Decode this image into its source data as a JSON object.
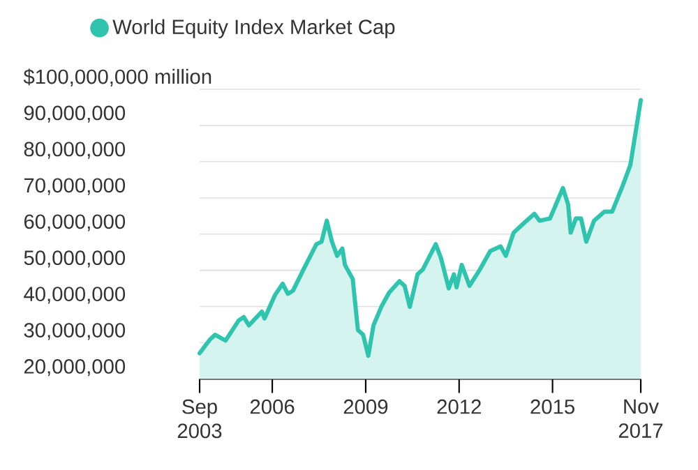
{
  "chart_data": {
    "type": "area",
    "series": [
      {
        "name": "World Equity Index Market Cap",
        "color": "#2ec4ae",
        "x": [
          "2003-09",
          "2004-01",
          "2004-03",
          "2004-07",
          "2004-12",
          "2005-02",
          "2005-04",
          "2005-09",
          "2005-10",
          "2006-02",
          "2006-05",
          "2006-07",
          "2006-09",
          "2007-01",
          "2007-06",
          "2007-08",
          "2007-10",
          "2007-12",
          "2008-02",
          "2008-04",
          "2008-05",
          "2008-08",
          "2008-10",
          "2008-12",
          "2009-02",
          "2009-04",
          "2009-07",
          "2009-10",
          "2010-02",
          "2010-04",
          "2010-06",
          "2010-09",
          "2010-11",
          "2011-04",
          "2011-06",
          "2011-09",
          "2011-11",
          "2011-12",
          "2012-02",
          "2012-05",
          "2012-09",
          "2013-01",
          "2013-05",
          "2013-07",
          "2013-10",
          "2014-01",
          "2014-06",
          "2014-08",
          "2014-12",
          "2015-05",
          "2015-07",
          "2015-08",
          "2015-10",
          "2015-12",
          "2016-02",
          "2016-05",
          "2016-09",
          "2016-12",
          "2017-04",
          "2017-07",
          "2017-11"
        ],
        "values": [
          27100000,
          30900000,
          32200000,
          30600000,
          36100000,
          37100000,
          34800000,
          38600000,
          36700000,
          43100000,
          46300000,
          43500000,
          44400000,
          50200000,
          57200000,
          57900000,
          63700000,
          57900000,
          54000000,
          56000000,
          51500000,
          47600000,
          33500000,
          32200000,
          26400000,
          34800000,
          39900000,
          43800000,
          47000000,
          45700000,
          39900000,
          48900000,
          50200000,
          57200000,
          53400000,
          45000000,
          48900000,
          45300000,
          51500000,
          45700000,
          50200000,
          55300000,
          56600000,
          54000000,
          60400000,
          62400000,
          65600000,
          63700000,
          64300000,
          72700000,
          68200000,
          60400000,
          64300000,
          64300000,
          57900000,
          63700000,
          66200000,
          66200000,
          73300000,
          79100000,
          97000000
        ]
      }
    ],
    "xlim": [
      "2003-09",
      "2017-11"
    ],
    "xticks": [
      {
        "value": "2003-09",
        "label": "Sep 2003"
      },
      {
        "value": "2006",
        "label": "2006"
      },
      {
        "value": "2009",
        "label": "2009"
      },
      {
        "value": "2012",
        "label": "2012"
      },
      {
        "value": "2015",
        "label": "2015"
      },
      {
        "value": "2017-11",
        "label": "Nov 2017"
      }
    ],
    "ylim": [
      20000000,
      100000000
    ],
    "yticks": [
      {
        "value": 20000000,
        "label": "20,000,000"
      },
      {
        "value": 30000000,
        "label": "30,000,000"
      },
      {
        "value": 40000000,
        "label": "40,000,000"
      },
      {
        "value": 50000000,
        "label": "50,000,000"
      },
      {
        "value": 60000000,
        "label": "60,000,000"
      },
      {
        "value": 70000000,
        "label": "70,000,000"
      },
      {
        "value": 80000000,
        "label": "80,000,000"
      },
      {
        "value": 90000000,
        "label": "90,000,000"
      },
      {
        "value": 100000000,
        "label": "$100,000,000 million"
      }
    ],
    "grid": "y",
    "legend": "top left",
    "marker": "none",
    "line_style": "solid"
  }
}
